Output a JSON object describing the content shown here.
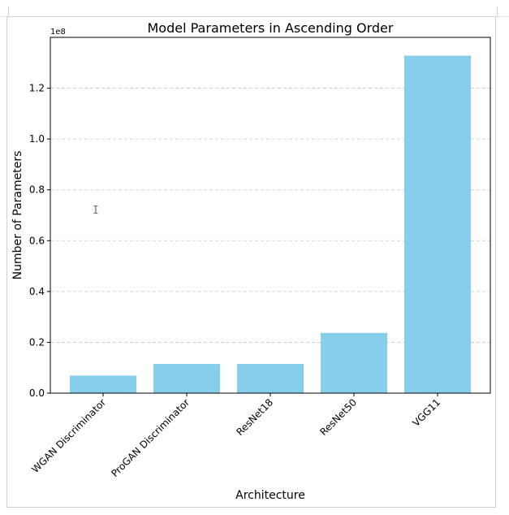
{
  "chart_data": {
    "type": "bar",
    "title": "Model Parameters in Ascending Order",
    "xlabel": "Architecture",
    "ylabel": "Number of Parameters",
    "y_scale_label": "1e8",
    "categories": [
      "WGAN Discriminator",
      "ProGAN Discriminator",
      "ResNet18",
      "ResNet50",
      "VGG11"
    ],
    "values": [
      6900000,
      11500000,
      11500000,
      23700000,
      132800000
    ],
    "ylim": [
      0,
      140000000
    ],
    "yticks": [
      0,
      20000000,
      40000000,
      60000000,
      80000000,
      100000000,
      120000000
    ],
    "ytick_labels": [
      "0.0",
      "0.2",
      "0.4",
      "0.6",
      "0.8",
      "1.0",
      "1.2"
    ],
    "grid": "y-dashed",
    "bar_color": "#87CEEB"
  },
  "cursor_glyph": "I"
}
